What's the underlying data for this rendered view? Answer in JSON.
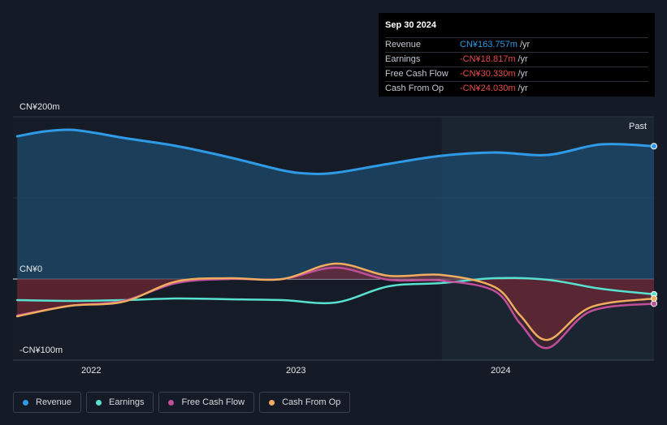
{
  "tooltip": {
    "date": "Sep 30 2024",
    "rows": [
      {
        "label": "Revenue",
        "value": "CN¥163.757m",
        "unit": "/yr",
        "color": "#2f9be6"
      },
      {
        "label": "Earnings",
        "value": "-CN¥18.817m",
        "unit": "/yr",
        "color": "#e64b4b"
      },
      {
        "label": "Free Cash Flow",
        "value": "-CN¥30.330m",
        "unit": "/yr",
        "color": "#e64b4b"
      },
      {
        "label": "Cash From Op",
        "value": "-CN¥24.030m",
        "unit": "/yr",
        "color": "#e64b4b"
      }
    ]
  },
  "past_label": "Past",
  "legend": [
    {
      "label": "Revenue",
      "color": "#2f9be6"
    },
    {
      "label": "Earnings",
      "color": "#58e1cf"
    },
    {
      "label": "Free Cash Flow",
      "color": "#c04f9a"
    },
    {
      "label": "Cash From Op",
      "color": "#f0ad5f"
    }
  ],
  "chart_data": {
    "type": "line",
    "y_tick_labels": [
      "CN¥200m",
      "CN¥0",
      "-CN¥100m"
    ],
    "x_tick_labels": [
      "2022",
      "2023",
      "2024"
    ],
    "ylim": [
      -100,
      200
    ],
    "xlim": [
      2021.73,
      2024.75
    ],
    "zero_line": true,
    "past_region_start": 2023.75,
    "series": [
      {
        "name": "Revenue",
        "color": "#2f9be6",
        "points": [
          [
            2021.75,
            176
          ],
          [
            2021.88,
            182
          ],
          [
            2022.0,
            184
          ],
          [
            2022.12,
            180
          ],
          [
            2022.25,
            174
          ],
          [
            2022.5,
            164
          ],
          [
            2022.75,
            150
          ],
          [
            2023.0,
            134
          ],
          [
            2023.12,
            130
          ],
          [
            2023.25,
            131
          ],
          [
            2023.5,
            142
          ],
          [
            2023.75,
            152
          ],
          [
            2024.0,
            156
          ],
          [
            2024.25,
            153
          ],
          [
            2024.5,
            166
          ],
          [
            2024.75,
            163.757
          ]
        ]
      },
      {
        "name": "Earnings",
        "color": "#58e1cf",
        "points": [
          [
            2021.75,
            -26
          ],
          [
            2022.0,
            -27
          ],
          [
            2022.25,
            -26
          ],
          [
            2022.5,
            -24
          ],
          [
            2022.75,
            -25
          ],
          [
            2023.0,
            -26
          ],
          [
            2023.25,
            -29
          ],
          [
            2023.5,
            -9
          ],
          [
            2023.75,
            -5
          ],
          [
            2024.0,
            1
          ],
          [
            2024.25,
            -1
          ],
          [
            2024.5,
            -12
          ],
          [
            2024.75,
            -18.817
          ]
        ]
      },
      {
        "name": "Free Cash Flow",
        "color": "#c04f9a",
        "points": [
          [
            2021.75,
            -45
          ],
          [
            2022.0,
            -33
          ],
          [
            2022.25,
            -27
          ],
          [
            2022.5,
            -5
          ],
          [
            2022.75,
            0
          ],
          [
            2023.0,
            0
          ],
          [
            2023.25,
            14
          ],
          [
            2023.5,
            -1
          ],
          [
            2023.75,
            -2
          ],
          [
            2024.0,
            -15
          ],
          [
            2024.12,
            -55
          ],
          [
            2024.25,
            -85
          ],
          [
            2024.45,
            -40
          ],
          [
            2024.75,
            -30.33
          ]
        ]
      },
      {
        "name": "Cash From Op",
        "color": "#f0ad5f",
        "points": [
          [
            2021.75,
            -46
          ],
          [
            2022.0,
            -33
          ],
          [
            2022.25,
            -28
          ],
          [
            2022.5,
            -3
          ],
          [
            2022.75,
            1
          ],
          [
            2023.0,
            0
          ],
          [
            2023.25,
            19
          ],
          [
            2023.5,
            4
          ],
          [
            2023.75,
            5
          ],
          [
            2024.0,
            -10
          ],
          [
            2024.12,
            -45
          ],
          [
            2024.25,
            -75
          ],
          [
            2024.45,
            -35
          ],
          [
            2024.75,
            -24.03
          ]
        ]
      }
    ]
  }
}
